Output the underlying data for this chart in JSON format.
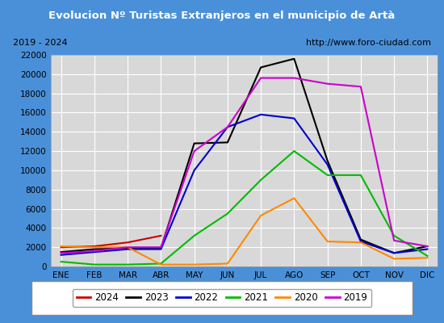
{
  "title": "Evolucion Nº Turistas Extranjeros en el municipio de Artà",
  "subtitle_left": "2019 - 2024",
  "subtitle_right": "http://www.foro-ciudad.com",
  "months": [
    "ENE",
    "FEB",
    "MAR",
    "ABR",
    "MAY",
    "JUN",
    "JUL",
    "AGO",
    "SEP",
    "OCT",
    "NOV",
    "DIC"
  ],
  "series": {
    "2024": {
      "color": "#cc0000",
      "linewidth": 1.5,
      "data": [
        2000,
        2100,
        2500,
        3200,
        null,
        null,
        null,
        null,
        null,
        null,
        null,
        null
      ]
    },
    "2023": {
      "color": "#000000",
      "linewidth": 1.5,
      "data": [
        1500,
        1800,
        1900,
        1900,
        12800,
        12900,
        20700,
        21600,
        11000,
        2800,
        1400,
        2100
      ]
    },
    "2022": {
      "color": "#0000cc",
      "linewidth": 1.5,
      "data": [
        1200,
        1500,
        1800,
        1800,
        10000,
        14500,
        15800,
        15400,
        10600,
        2600,
        1400,
        1800
      ]
    },
    "2021": {
      "color": "#00bb00",
      "linewidth": 1.5,
      "data": [
        500,
        200,
        200,
        300,
        3200,
        5500,
        9000,
        12000,
        9500,
        9500,
        3200,
        1100
      ]
    },
    "2020": {
      "color": "#ff8800",
      "linewidth": 1.5,
      "data": [
        2100,
        2000,
        2000,
        200,
        200,
        300,
        5300,
        7100,
        2600,
        2500,
        800,
        900
      ]
    },
    "2019": {
      "color": "#cc00cc",
      "linewidth": 1.5,
      "data": [
        1400,
        1600,
        2000,
        2000,
        12000,
        14500,
        19600,
        19600,
        19000,
        18700,
        2700,
        2100
      ]
    }
  },
  "ylim": [
    0,
    22000
  ],
  "yticks": [
    0,
    2000,
    4000,
    6000,
    8000,
    10000,
    12000,
    14000,
    16000,
    18000,
    20000,
    22000
  ],
  "title_bg_color": "#4a90d9",
  "title_fg_color": "#ffffff",
  "header_bg_color": "#e8e8e8",
  "plot_bg_color": "#d8d8d8",
  "grid_color": "#ffffff",
  "border_color": "#4a90d9",
  "legend_order": [
    "2024",
    "2023",
    "2022",
    "2021",
    "2020",
    "2019"
  ]
}
